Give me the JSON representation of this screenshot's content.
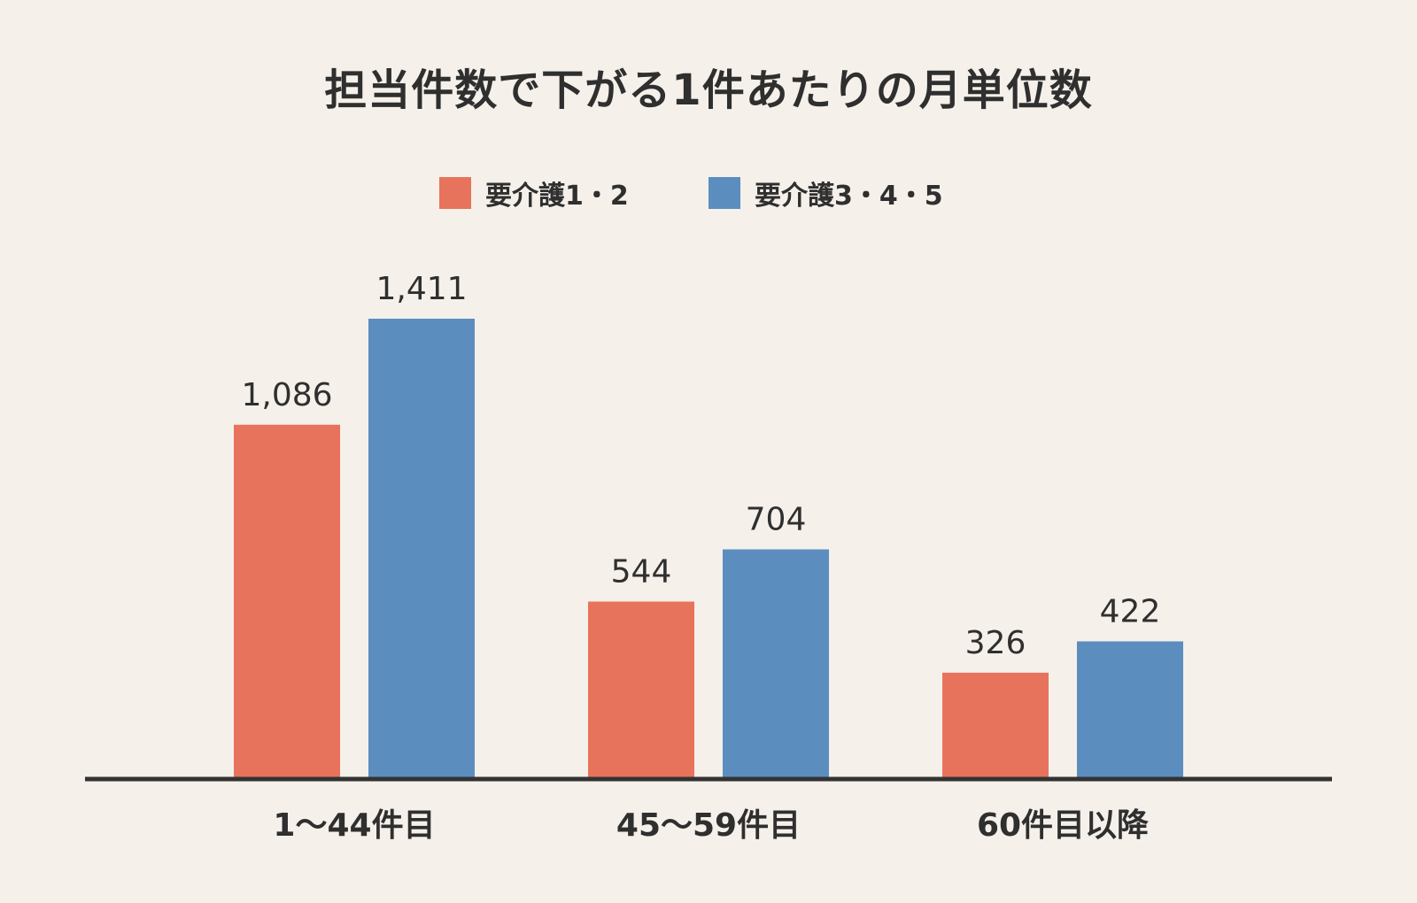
{
  "chart_data": {
    "type": "bar",
    "title": "担当件数で下がる1件あたりの月単位数",
    "xlabel": "",
    "ylabel": "",
    "categories": [
      "1〜44件目",
      "45〜59件目",
      "60件目以降"
    ],
    "series": [
      {
        "name": "要介護1・2",
        "values": [
          1086,
          544,
          326
        ],
        "color": "#e8735c"
      },
      {
        "name": "要介護3・4・5",
        "values": [
          1411,
          704,
          422
        ],
        "color": "#5b8ebf"
      }
    ],
    "value_labels": [
      [
        "1,086",
        "544",
        "326"
      ],
      [
        "1,411",
        "704",
        "422"
      ]
    ],
    "ylim": [
      0,
      1411
    ],
    "grid": false,
    "legend_position": "top-center"
  },
  "colors": {
    "background": "#f5f0ea",
    "text": "#2f2f2f",
    "axis": "#333333"
  }
}
